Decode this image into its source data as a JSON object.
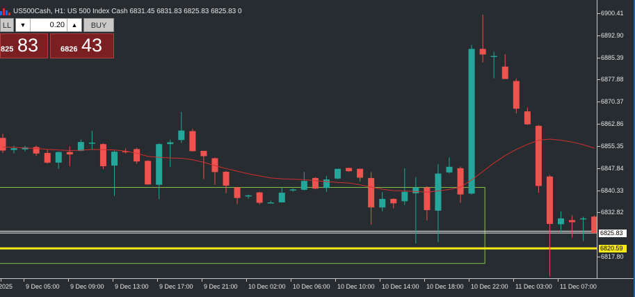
{
  "header": {
    "text": "US500Cash, H1:  US 500 Index Cash  6831.45 6831.83 6825.83 6825.83  0"
  },
  "trade_panel": {
    "sell_label": "LL",
    "buy_label": "BUY",
    "lot_value": "0.20",
    "bid_small": "825",
    "bid_big": "83",
    "ask_small": "6826",
    "ask_big": "43"
  },
  "price_axis": {
    "ticks": [
      "6900.41",
      "6892.90",
      "6885.39",
      "6877.88",
      "6870.37",
      "6862.86",
      "6855.35",
      "6847.84",
      "6840.33",
      "6832.82",
      "6817.80"
    ],
    "current_price_tag": "6825.83",
    "level_tag": "6820.59"
  },
  "time_axis": {
    "labels": [
      "2025",
      "9 Dec 05:00",
      "9 Dec 09:00",
      "9 Dec 13:00",
      "9 Dec 17:00",
      "9 Dec 21:00",
      "10 Dec 02:00",
      "10 Dec 06:00",
      "10 Dec 10:00",
      "10 Dec 14:00",
      "10 Dec 18:00",
      "10 Dec 22:00",
      "11 Dec 03:00",
      "11 Dec 07:00"
    ]
  },
  "colors": {
    "bull": "#26a69a",
    "bear": "#ef5350",
    "ma_line": "#d32f2f",
    "zone_border": "#8bc34a",
    "level_line": "#f5ea14",
    "background": "#262c30"
  },
  "chart_data": {
    "type": "candlestick",
    "symbol": "US500Cash",
    "timeframe": "H1",
    "ylim": [
      6813.0,
      6903.0
    ],
    "candles": [
      {
        "o": 6858.1,
        "h": 6859.5,
        "c": 6853.8,
        "l": 6853.0
      },
      {
        "o": 6854.0,
        "h": 6855.5,
        "c": 6854.6,
        "l": 6852.8
      },
      {
        "o": 6854.2,
        "h": 6855.4,
        "c": 6854.9,
        "l": 6853.5
      },
      {
        "o": 6855.0,
        "h": 6855.5,
        "c": 6852.8,
        "l": 6852.0
      },
      {
        "o": 6853.0,
        "h": 6854.2,
        "c": 6849.7,
        "l": 6849.3
      },
      {
        "o": 6849.7,
        "h": 6853.5,
        "c": 6853.3,
        "l": 6847.6
      },
      {
        "o": 6853.3,
        "h": 6855.2,
        "c": 6852.5,
        "l": 6848.5
      },
      {
        "o": 6853.7,
        "h": 6857.5,
        "c": 6856.7,
        "l": 6853.5
      },
      {
        "o": 6856.3,
        "h": 6860.5,
        "c": 6856.5,
        "l": 6854.0
      },
      {
        "o": 6856.0,
        "h": 6856.3,
        "c": 6848.5,
        "l": 6847.5
      },
      {
        "o": 6848.7,
        "h": 6853.8,
        "c": 6853.4,
        "l": 6838.4
      },
      {
        "o": 6853.6,
        "h": 6854.5,
        "c": 6853.4,
        "l": 6852.8
      },
      {
        "o": 6854.3,
        "h": 6854.8,
        "c": 6850.1,
        "l": 6849.3
      },
      {
        "o": 6850.3,
        "h": 6850.5,
        "c": 6842.3,
        "l": 6842.2
      },
      {
        "o": 6842.2,
        "h": 6856.3,
        "c": 6856.0,
        "l": 6837.3
      },
      {
        "o": 6856.0,
        "h": 6857.5,
        "c": 6856.6,
        "l": 6848.3
      },
      {
        "o": 6857.4,
        "h": 6866.9,
        "c": 6860.6,
        "l": 6856.4
      },
      {
        "o": 6860.4,
        "h": 6861.2,
        "c": 6853.6,
        "l": 6853.5
      },
      {
        "o": 6853.7,
        "h": 6853.7,
        "c": 6851.9,
        "l": 6844.1
      },
      {
        "o": 6851.2,
        "h": 6851.4,
        "c": 6846.5,
        "l": 6842.2
      },
      {
        "o": 6846.6,
        "h": 6846.9,
        "c": 6841.9,
        "l": 6839.3
      },
      {
        "o": 6841.3,
        "h": 6841.4,
        "c": 6837.7,
        "l": 6835.6
      },
      {
        "o": 6838.6,
        "h": 6838.9,
        "c": 6838.6,
        "l": 6837.5
      },
      {
        "o": 6839.6,
        "h": 6839.8,
        "c": 6836.1,
        "l": 6835.5
      },
      {
        "o": 6836.2,
        "h": 6836.8,
        "c": 6836.2,
        "l": 6835.9
      },
      {
        "o": 6836.2,
        "h": 6841.3,
        "c": 6839.5,
        "l": 6836.2
      },
      {
        "o": 6840.3,
        "h": 6841.0,
        "c": 6840.6,
        "l": 6839.8
      },
      {
        "o": 6840.5,
        "h": 6846.6,
        "c": 6843.5,
        "l": 6840.3
      },
      {
        "o": 6844.5,
        "h": 6844.8,
        "c": 6840.9,
        "l": 6840.6
      },
      {
        "o": 6841.1,
        "h": 6845.2,
        "c": 6844.0,
        "l": 6839.8
      },
      {
        "o": 6844.3,
        "h": 6847.6,
        "c": 6847.6,
        "l": 6844.1
      },
      {
        "o": 6847.9,
        "h": 6848.0,
        "c": 6846.8,
        "l": 6846.6
      },
      {
        "o": 6847.6,
        "h": 6847.7,
        "c": 6844.6,
        "l": 6843.3
      },
      {
        "o": 6844.5,
        "h": 6846.5,
        "c": 6834.5,
        "l": 6828.7
      },
      {
        "o": 6834.5,
        "h": 6839.7,
        "c": 6837.4,
        "l": 6833.2
      },
      {
        "o": 6837.4,
        "h": 6837.6,
        "c": 6835.9,
        "l": 6834.2
      },
      {
        "o": 6836.6,
        "h": 6847.8,
        "c": 6839.8,
        "l": 6835.3
      },
      {
        "o": 6839.3,
        "h": 6844.8,
        "c": 6841.3,
        "l": 6822.3
      },
      {
        "o": 6841.3,
        "h": 6841.7,
        "c": 6833.6,
        "l": 6830.1
      },
      {
        "o": 6833.4,
        "h": 6849.1,
        "c": 6846.0,
        "l": 6822.8
      },
      {
        "o": 6846.4,
        "h": 6851.5,
        "c": 6848.3,
        "l": 6846.0
      },
      {
        "o": 6847.8,
        "h": 6848.4,
        "c": 6838.9,
        "l": 6836.1
      },
      {
        "o": 6839.2,
        "h": 6889.6,
        "c": 6888.3,
        "l": 6838.9
      },
      {
        "o": 6888.3,
        "h": 6899.9,
        "c": 6886.4,
        "l": 6883.7
      },
      {
        "o": 6885.7,
        "h": 6887.3,
        "c": 6885.9,
        "l": 6878.3
      },
      {
        "o": 6882.3,
        "h": 6886.5,
        "c": 6878.1,
        "l": 6878.1
      },
      {
        "o": 6877.4,
        "h": 6878.2,
        "c": 6868.0,
        "l": 6866.4
      },
      {
        "o": 6867.1,
        "h": 6868.4,
        "c": 6862.7,
        "l": 6862.5
      },
      {
        "o": 6862.2,
        "h": 6862.5,
        "c": 6841.8,
        "l": 6839.5
      },
      {
        "o": 6845.0,
        "h": 6845.5,
        "c": 6828.9,
        "l": 6811.1
      },
      {
        "o": 6828.8,
        "h": 6833.1,
        "c": 6830.8,
        "l": 6826.2
      },
      {
        "o": 6830.2,
        "h": 6831.8,
        "c": 6829.5,
        "l": 6824.3
      },
      {
        "o": 6830.5,
        "h": 6831.4,
        "c": 6830.8,
        "l": 6823.1
      },
      {
        "o": 6831.4,
        "h": 6831.8,
        "c": 6825.8,
        "l": 6825.8
      }
    ],
    "moving_average": [
      6855.0,
      6854.9,
      6854.7,
      6854.5,
      6854.2,
      6854.0,
      6853.8,
      6853.9,
      6854.2,
      6854.1,
      6854.0,
      6853.6,
      6852.9,
      6851.8,
      6851.5,
      6851.3,
      6851.2,
      6850.7,
      6849.8,
      6848.7,
      6847.7,
      6846.8,
      6845.9,
      6845.2,
      6844.5,
      6844.2,
      6844.1,
      6843.9,
      6843.6,
      6843.3,
      6843.0,
      6842.8,
      6842.2,
      6841.4,
      6840.7,
      6840.2,
      6840.1,
      6839.9,
      6839.7,
      6840.1,
      6840.6,
      6841.4,
      6843.8,
      6846.7,
      6849.6,
      6852.1,
      6854.2,
      6855.9,
      6857.3,
      6857.7,
      6857.3,
      6856.7,
      6855.8,
      6854.6
    ],
    "zone": {
      "top": 6841.3,
      "bottom": 6815.5,
      "candle_start": 0,
      "candle_end": 43
    },
    "horizontal_levels": [
      6825.83,
      6826.43,
      6820.59
    ]
  }
}
